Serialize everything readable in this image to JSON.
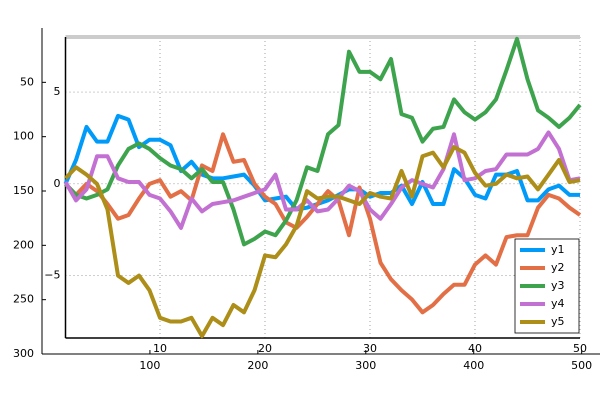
{
  "chart_data": {
    "type": "line",
    "x": [
      1,
      2,
      3,
      4,
      5,
      6,
      7,
      8,
      9,
      10,
      11,
      12,
      13,
      14,
      15,
      16,
      17,
      18,
      19,
      20,
      21,
      22,
      23,
      24,
      25,
      26,
      27,
      28,
      29,
      30,
      31,
      32,
      33,
      34,
      35,
      36,
      37,
      38,
      39,
      40,
      41,
      42,
      43,
      44,
      45,
      46,
      47,
      48,
      49,
      50
    ],
    "series": [
      {
        "name": "y1",
        "color": "#009af9",
        "values": [
          0,
          1.3,
          3.1,
          2.3,
          2.3,
          3.7,
          3.5,
          2,
          2.4,
          2.4,
          2.1,
          0.7,
          1.2,
          0.5,
          0.3,
          0.3,
          0.4,
          0.5,
          -0.1,
          -0.9,
          -0.8,
          -0.7,
          -1.4,
          -1.3,
          -1.1,
          -0.9,
          -0.6,
          -0.3,
          -0.3,
          -0.7,
          -0.5,
          -0.5,
          -0.1,
          -1.1,
          0.1,
          -1.1,
          -1.1,
          0.8,
          0.3,
          -0.6,
          -0.8,
          0.5,
          0.5,
          0.7,
          -0.9,
          -0.9,
          -0.3,
          -0.1,
          -0.6,
          -0.6
        ]
      },
      {
        "name": "y2",
        "color": "#e26f46",
        "values": [
          0,
          -0.6,
          0,
          -0.4,
          -1.1,
          -1.9,
          -1.7,
          -0.8,
          0,
          0.2,
          -0.7,
          -0.4,
          -0.9,
          1,
          0.7,
          2.7,
          1.2,
          1.3,
          0,
          -0.7,
          -1.1,
          -2.1,
          -2.4,
          -1.8,
          -1.1,
          -0.4,
          -0.9,
          -2.8,
          -0.2,
          -1.9,
          -4.3,
          -5.2,
          -5.8,
          -6.3,
          -7,
          -6.6,
          -6,
          -5.5,
          -5.5,
          -4.4,
          -3.9,
          -4.4,
          -2.9,
          -2.8,
          -2.8,
          -1.3,
          -0.6,
          -0.8,
          -1.3,
          -1.7
        ]
      },
      {
        "name": "y3",
        "color": "#3da44d",
        "values": [
          0,
          -0.6,
          -0.8,
          -0.6,
          -0.3,
          1,
          1.9,
          2.2,
          1.9,
          1.4,
          1,
          0.8,
          0.3,
          0.8,
          0.1,
          0.1,
          -1.4,
          -3.3,
          -3,
          -2.6,
          -2.8,
          -2,
          -0.9,
          0.9,
          0.7,
          2.7,
          3.2,
          7.2,
          6.1,
          6.1,
          5.7,
          6.8,
          3.8,
          3.6,
          2.3,
          3,
          3.1,
          4.6,
          3.9,
          3.5,
          3.9,
          4.6,
          6.2,
          7.9,
          5.7,
          4,
          3.6,
          3.1,
          3.6,
          4.3
        ]
      },
      {
        "name": "y4",
        "color": "#c271d2",
        "values": [
          0.1,
          -0.9,
          -0.3,
          1.5,
          1.5,
          0.3,
          0.1,
          0.1,
          -0.6,
          -0.8,
          -1.5,
          -2.4,
          -0.8,
          -1.5,
          -1.1,
          -1,
          -0.9,
          -0.7,
          -0.5,
          -0.3,
          0.5,
          -1.4,
          -1.4,
          -0.9,
          -1.5,
          -1.4,
          -0.8,
          -0.1,
          -0.4,
          -1.4,
          -1.9,
          -1.1,
          -0.2,
          0.2,
          0,
          -0.2,
          0.8,
          2.7,
          0.2,
          0.3,
          0.7,
          0.8,
          1.6,
          1.6,
          1.6,
          1.9,
          2.8,
          1.9,
          0.2,
          0.3
        ]
      },
      {
        "name": "y5",
        "color": "#ac8e18",
        "values": [
          0.3,
          0.9,
          0.5,
          0,
          -1.4,
          -5,
          -5.4,
          -5,
          -5.8,
          -7.3,
          -7.5,
          -7.5,
          -7.3,
          -8.3,
          -7.3,
          -7.7,
          -6.6,
          -7,
          -5.8,
          -3.9,
          -4,
          -3.3,
          -2.3,
          -0.4,
          -0.8,
          -0.7,
          -0.7,
          -0.9,
          -1.1,
          -0.5,
          -0.7,
          -0.8,
          0.7,
          -0.7,
          1.5,
          1.7,
          0.9,
          2,
          1.7,
          0.6,
          -0.1,
          0,
          0.5,
          0.3,
          0.4,
          -0.3,
          0.5,
          1.3,
          0.1,
          0.2
        ]
      }
    ],
    "xlim": [
      1,
      50
    ],
    "xticks": [
      10,
      20,
      30,
      40,
      50
    ],
    "ylim": [
      -8.4,
      8
    ],
    "yticks": [
      {
        "value": -5,
        "label": "−5"
      },
      0,
      5
    ],
    "grid": true,
    "legend": "bottom right",
    "x2lim": [
      0,
      517
    ],
    "x2ticks": [
      100,
      200,
      300,
      400,
      500
    ],
    "y2lim": [
      0,
      300
    ],
    "y2ticks": [
      50,
      100,
      150,
      200,
      250,
      300
    ],
    "y2_inverted": true
  }
}
